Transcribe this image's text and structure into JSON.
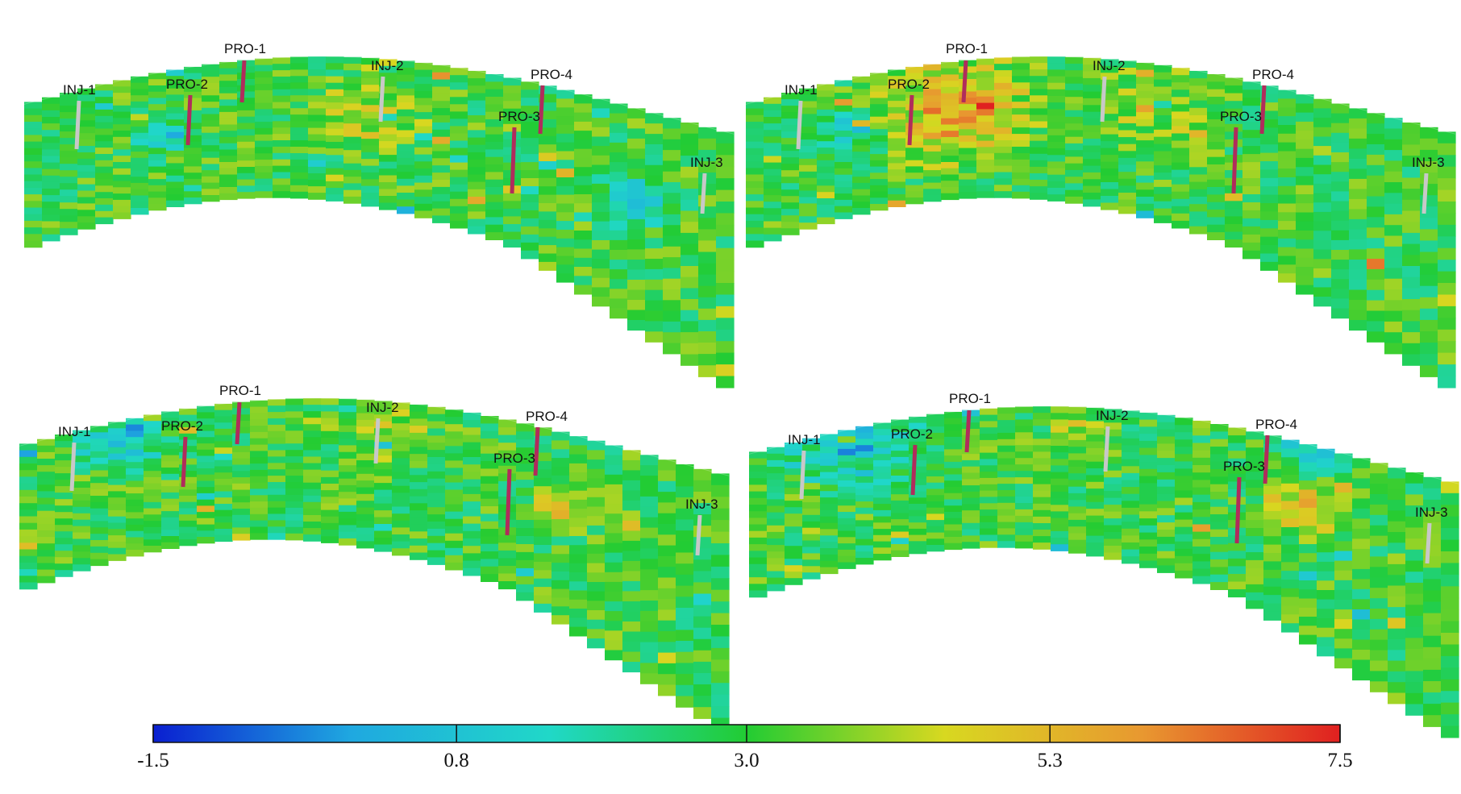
{
  "panels": [
    {
      "id": "top-left",
      "wells": [
        {
          "name": "INJ-1",
          "type": "injector"
        },
        {
          "name": "PRO-2",
          "type": "producer"
        },
        {
          "name": "PRO-1",
          "type": "producer"
        },
        {
          "name": "INJ-2",
          "type": "injector"
        },
        {
          "name": "PRO-4",
          "type": "producer"
        },
        {
          "name": "PRO-3",
          "type": "producer"
        },
        {
          "name": "INJ-3",
          "type": "injector"
        }
      ]
    },
    {
      "id": "top-right",
      "wells": [
        {
          "name": "INJ-1",
          "type": "injector"
        },
        {
          "name": "PRO-2",
          "type": "producer"
        },
        {
          "name": "PRO-1",
          "type": "producer"
        },
        {
          "name": "INJ-2",
          "type": "injector"
        },
        {
          "name": "PRO-4",
          "type": "producer"
        },
        {
          "name": "PRO-3",
          "type": "producer"
        },
        {
          "name": "INJ-3",
          "type": "injector"
        }
      ]
    },
    {
      "id": "bottom-left",
      "wells": [
        {
          "name": "INJ-1",
          "type": "injector"
        },
        {
          "name": "PRO-2",
          "type": "producer"
        },
        {
          "name": "PRO-1",
          "type": "producer"
        },
        {
          "name": "INJ-2",
          "type": "injector"
        },
        {
          "name": "PRO-4",
          "type": "producer"
        },
        {
          "name": "PRO-3",
          "type": "producer"
        },
        {
          "name": "INJ-3",
          "type": "injector"
        }
      ]
    },
    {
      "id": "bottom-right",
      "wells": [
        {
          "name": "INJ-1",
          "type": "injector"
        },
        {
          "name": "PRO-2",
          "type": "producer"
        },
        {
          "name": "PRO-1",
          "type": "producer"
        },
        {
          "name": "INJ-2",
          "type": "injector"
        },
        {
          "name": "PRO-4",
          "type": "producer"
        },
        {
          "name": "PRO-3",
          "type": "producer"
        },
        {
          "name": "INJ-3",
          "type": "injector"
        }
      ]
    }
  ],
  "colorbar": {
    "min": -1.5,
    "max": 7.5,
    "ticks": [
      {
        "value": -1.5,
        "label": "-1.5"
      },
      {
        "value": 0.8,
        "label": "0.8"
      },
      {
        "value": 3.0,
        "label": "3.0"
      },
      {
        "value": 5.3,
        "label": "5.3"
      },
      {
        "value": 7.5,
        "label": "7.5"
      }
    ],
    "stops": [
      "#0a1fd0",
      "#1fa8e0",
      "#20d8c8",
      "#22cc33",
      "#d8d820",
      "#e89830",
      "#e02020"
    ]
  },
  "colors": {
    "producer": "#b02c5c",
    "injector": "#c8c8c8"
  }
}
